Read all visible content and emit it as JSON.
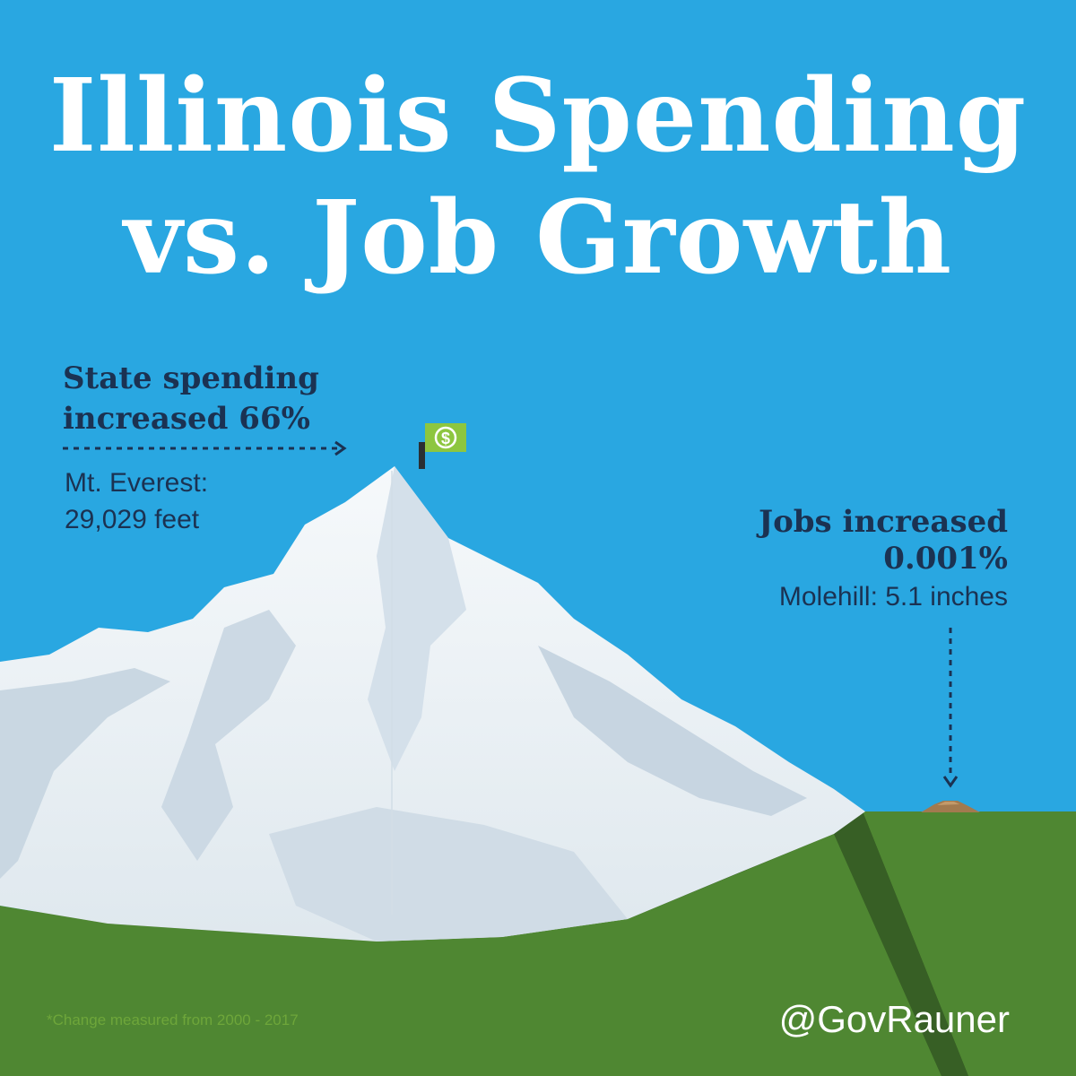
{
  "title": {
    "line1": "Illinois Spending",
    "line2": "vs. Job Growth"
  },
  "spending_callout": {
    "headline_line1": "State spending",
    "headline_line2": "increased 66%",
    "comparison_line1": "Mt. Everest:",
    "comparison_line2": "29,029 feet"
  },
  "jobs_callout": {
    "headline_line1": "Jobs increased",
    "headline_line2": "0.001%",
    "comparison": "Molehill: 5.1 inches"
  },
  "flag_symbol": "$",
  "footnote": "*Change measured from 2000 - 2017",
  "handle": "@GovRauner",
  "icons": {
    "flag": "dollar-flag-icon",
    "molehill": "molehill-icon"
  },
  "colors": {
    "sky": "#29a7e1",
    "grass_light": "#4f8732",
    "grass_dark": "#375f25",
    "snow": "#eef3f6",
    "text_dark": "#1b3252",
    "flag_green": "#8dc63f",
    "footnote_green": "#6ea63a",
    "molehill_brown": "#a27a4f"
  }
}
